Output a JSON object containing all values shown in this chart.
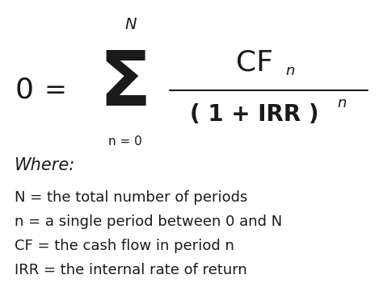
{
  "background_color": "#ffffff",
  "text_color": "#1a1a1a",
  "figsize": [
    4.74,
    3.77
  ],
  "dpi": 100,
  "where_label": "Where:",
  "definitions": [
    "N = the total number of periods",
    "n = a single period between 0 and N",
    "CF = the cash flow in period n",
    "IRR = the internal rate of return"
  ],
  "handwriting_fonts": [
    "Patrick Hand",
    "Caveat",
    "Architects Daughter",
    "Gloria Hallelujah",
    "Comic Sans MS"
  ],
  "fallback_font": "DejaVu Sans"
}
